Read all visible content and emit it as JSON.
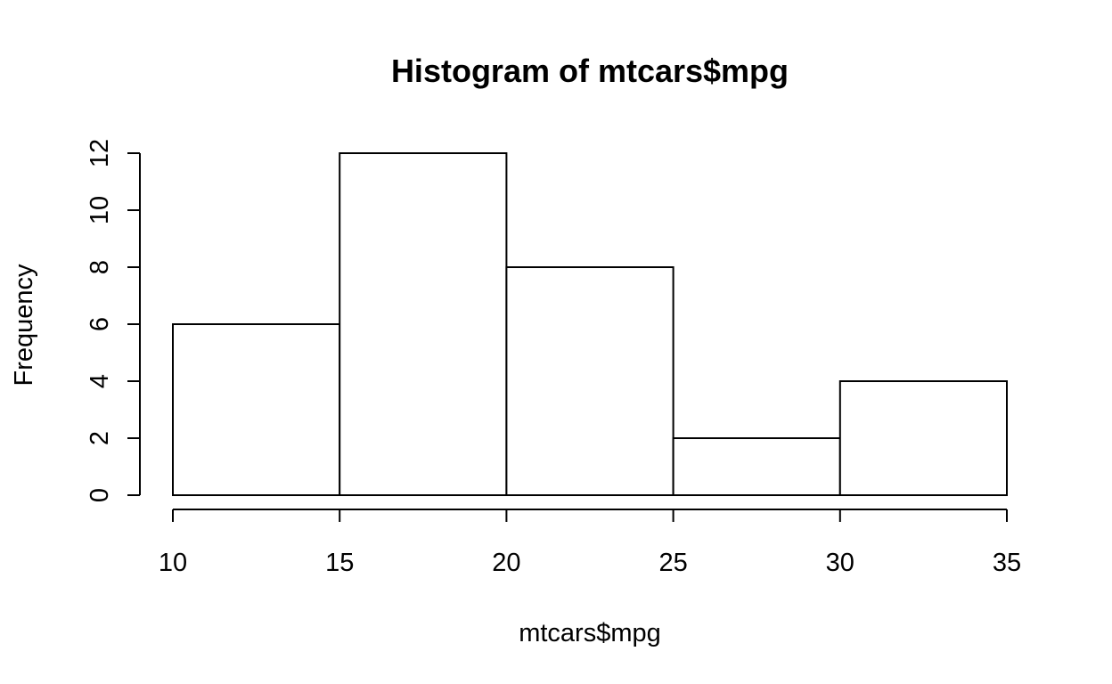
{
  "chart_data": {
    "type": "bar",
    "title": "Histogram of mtcars$mpg",
    "xlabel": "mtcars$mpg",
    "ylabel": "Frequency",
    "bins": [
      {
        "x0": 10,
        "x1": 15,
        "count": 6
      },
      {
        "x0": 15,
        "x1": 20,
        "count": 12
      },
      {
        "x0": 20,
        "x1": 25,
        "count": 8
      },
      {
        "x0": 25,
        "x1": 30,
        "count": 2
      },
      {
        "x0": 30,
        "x1": 35,
        "count": 4
      }
    ],
    "xlim": [
      10,
      35
    ],
    "ylim": [
      0,
      12
    ],
    "x_ticks": [
      "10",
      "15",
      "20",
      "25",
      "30",
      "35"
    ],
    "y_ticks": [
      "0",
      "2",
      "4",
      "6",
      "8",
      "10",
      "12"
    ],
    "grid": false,
    "colors": {
      "bar_fill": "#ffffff",
      "bar_stroke": "#000000"
    }
  }
}
